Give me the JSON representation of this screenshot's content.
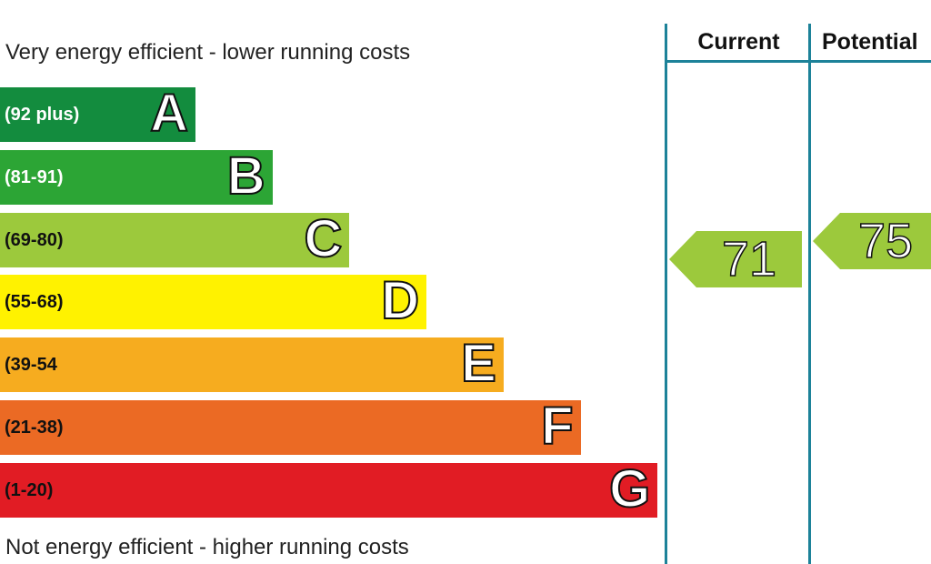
{
  "captions": {
    "top": "Very energy efficient - lower running costs",
    "bottom": "Not energy efficient - higher running costs"
  },
  "columns": {
    "current": "Current",
    "potential": "Potential"
  },
  "chart_data": {
    "type": "bar",
    "categories": [
      "A",
      "B",
      "C",
      "D",
      "E",
      "F",
      "G"
    ],
    "ranges": [
      "(92 plus)",
      "(81-91)",
      "(69-80)",
      "(55-68)",
      "(39-54",
      "(21-38)",
      "(1-20)"
    ],
    "colors": [
      "#138c3e",
      "#2ca535",
      "#9cc93c",
      "#fff200",
      "#f6ac1f",
      "#eb6a24",
      "#e11c24"
    ],
    "range_text_colors": [
      "#ffffff",
      "#ffffff",
      "#111111",
      "#111111",
      "#111111",
      "#111111",
      "#111111"
    ],
    "current": {
      "value": 71,
      "band": "C",
      "color": "#9cc93c"
    },
    "potential": {
      "value": 75,
      "band": "C",
      "color": "#9cc93c"
    }
  },
  "colors": {
    "divider": "#1d8299"
  }
}
